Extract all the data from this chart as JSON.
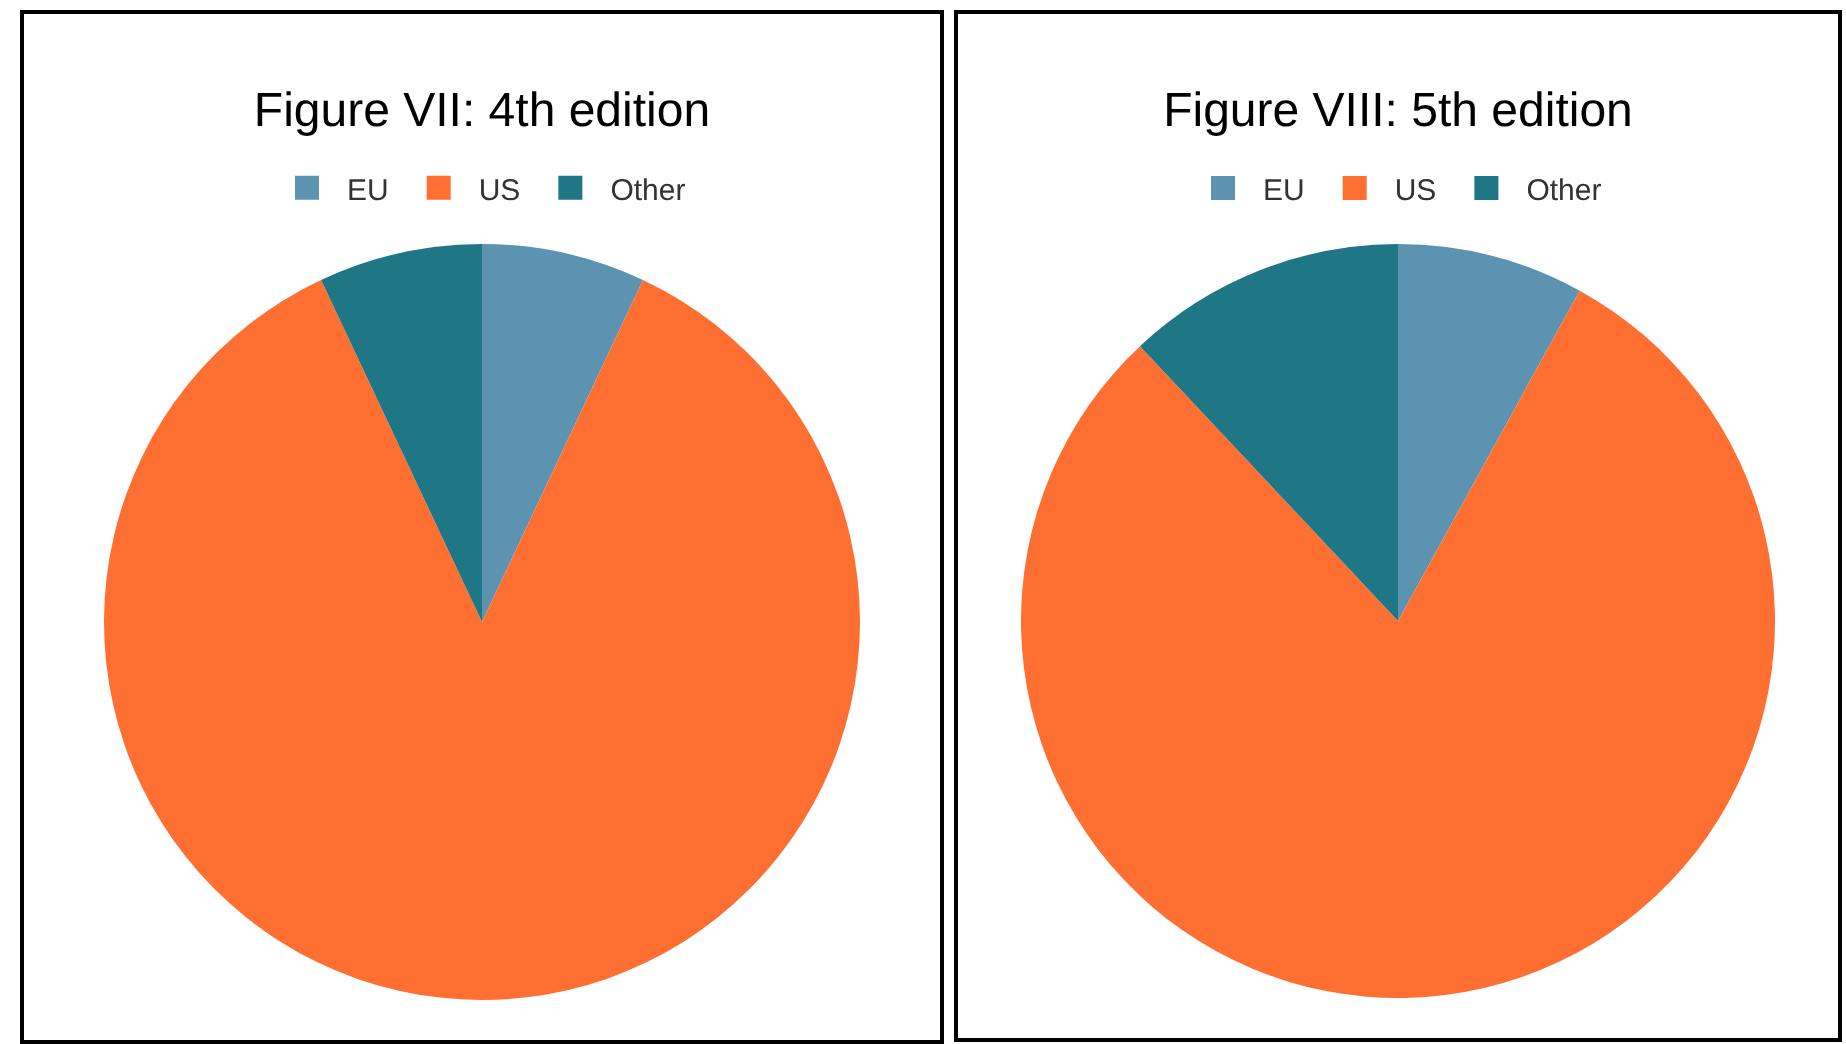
{
  "chart_data": [
    {
      "type": "pie",
      "title": "Figure VII: 4th edition",
      "categories": [
        "EU",
        "US",
        "Other"
      ],
      "values": [
        7,
        86,
        7
      ],
      "colors": [
        "#5b93b0",
        "#ff6f31",
        "#1f7684"
      ],
      "legend": "top"
    },
    {
      "type": "pie",
      "title": "Figure VIII: 5th edition",
      "categories": [
        "EU",
        "US",
        "Other"
      ],
      "values": [
        8,
        80,
        12
      ],
      "colors": [
        "#5b93b0",
        "#ff6f31",
        "#1f7684"
      ],
      "legend": "top"
    }
  ]
}
